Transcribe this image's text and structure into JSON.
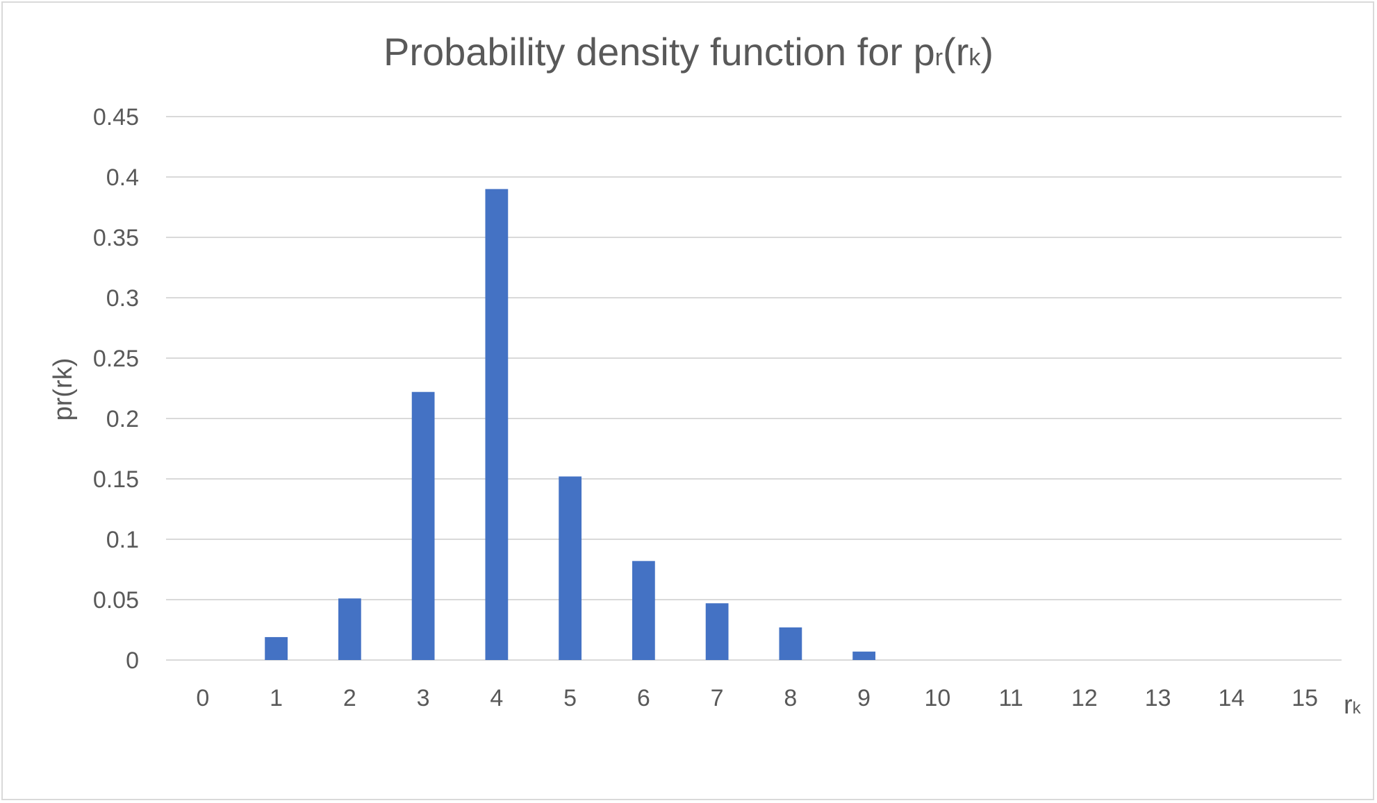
{
  "chart_data": {
    "type": "bar",
    "title_parts": [
      "Probability density function for p",
      "r",
      "(r",
      "k",
      ")"
    ],
    "xlabel_parts": [
      "r",
      "k"
    ],
    "ylabel": "pr(rk)",
    "categories": [
      "0",
      "1",
      "2",
      "3",
      "4",
      "5",
      "6",
      "7",
      "8",
      "9",
      "10",
      "11",
      "12",
      "13",
      "14",
      "15"
    ],
    "values": [
      0,
      0.019,
      0.051,
      0.222,
      0.39,
      0.152,
      0.082,
      0.047,
      0.027,
      0.007,
      0,
      0,
      0,
      0,
      0,
      0
    ],
    "y_ticks": [
      "0",
      "0.05",
      "0.1",
      "0.15",
      "0.2",
      "0.25",
      "0.3",
      "0.35",
      "0.4",
      "0.45"
    ],
    "ylim": [
      0,
      0.45
    ],
    "grid": true,
    "legend": "none",
    "bar_color": "#4472c4",
    "grid_color": "#d9d9d9"
  }
}
